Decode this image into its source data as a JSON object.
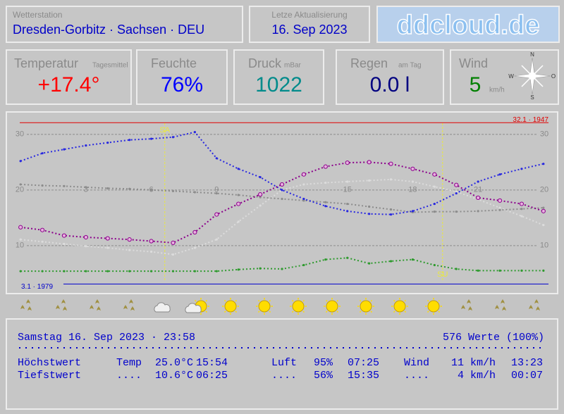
{
  "header": {
    "station_label": "Wetterstation",
    "station": "Dresden-Gorbitz · Sachsen · DEU",
    "update_label": "Letze Aktualisierung",
    "update_date": "16. Sep 2023",
    "logo": "ddcloud.de"
  },
  "tiles": [
    {
      "label": "Temperatur",
      "sublabel": "Tagesmittel",
      "value": "+17.4°",
      "color": "#ff0000"
    },
    {
      "label": "Feuchte",
      "value": "76%",
      "color": "#0000ff"
    },
    {
      "label": "Druck",
      "sublabel": "mBar",
      "value": "1022",
      "color": "#008b8b"
    },
    {
      "label": "Regen",
      "sublabel": "am Tag",
      "value": "0.0 l",
      "color": "#000080"
    },
    {
      "label": "Wind",
      "value": "5",
      "unit": "km/h",
      "color": "#008000"
    }
  ],
  "compass": [
    "N",
    "O",
    "S",
    "W"
  ],
  "chart_data": {
    "type": "line",
    "x": [
      0,
      1,
      2,
      3,
      4,
      5,
      6,
      7,
      8,
      9,
      10,
      11,
      12,
      13,
      14,
      15,
      16,
      17,
      18,
      19,
      20,
      21,
      22,
      23,
      24
    ],
    "xlim": [
      -0.62,
      24.62
    ],
    "xticks": [
      3,
      6,
      9,
      15,
      18,
      21
    ],
    "ylim": [
      1.5,
      33.9
    ],
    "yticks": [
      10,
      20,
      30
    ],
    "grid": true,
    "series": [
      {
        "color": "#dcdcdc",
        "values": [
          11.1,
          10.7,
          10.3,
          9.9,
          9.6,
          9.2,
          8.9,
          8.4,
          9.6,
          11.1,
          14.3,
          17.2,
          20.0,
          21.0,
          21.3,
          21.5,
          21.7,
          21.9,
          21.5,
          20.6,
          19.7,
          18.3,
          16.8,
          15.3,
          13.7
        ]
      },
      {
        "color": "#8c8c8c",
        "values": [
          21.0,
          20.8,
          20.7,
          20.5,
          20.3,
          20.2,
          20.0,
          19.8,
          19.6,
          19.4,
          19.1,
          18.7,
          18.4,
          18.1,
          17.8,
          17.5,
          17.0,
          16.5,
          16.0,
          16.1,
          16.1,
          16.2,
          16.4,
          16.6,
          16.8
        ]
      },
      {
        "color": "#2828e0",
        "values": [
          25.2,
          26.6,
          27.3,
          28.0,
          28.5,
          29.0,
          29.2,
          29.5,
          30.4,
          25.7,
          23.8,
          22.3,
          20.0,
          18.4,
          17.1,
          16.2,
          15.7,
          15.6,
          16.2,
          17.5,
          19.4,
          21.5,
          22.8,
          23.8,
          24.7
        ]
      },
      {
        "color": "#2e9a2e",
        "values": [
          5.4,
          5.4,
          5.4,
          5.4,
          5.4,
          5.4,
          5.4,
          5.4,
          5.4,
          5.4,
          5.7,
          5.9,
          5.8,
          6.5,
          7.5,
          7.8,
          6.8,
          7.2,
          7.5,
          6.5,
          5.8,
          5.5,
          5.5,
          5.5,
          5.5
        ]
      },
      {
        "color": "#8b008b",
        "values": [
          13.3,
          12.8,
          11.8,
          11.5,
          11.3,
          11.1,
          10.8,
          10.5,
          12.4,
          15.6,
          17.5,
          19.2,
          21.0,
          22.8,
          24.2,
          24.9,
          25.0,
          24.7,
          23.8,
          22.8,
          20.9,
          18.6,
          18.1,
          17.5,
          16.2
        ]
      }
    ],
    "reference_lines": [
      {
        "value": 32.1,
        "label": "32.1 · 1947",
        "color": "#e00000"
      },
      {
        "value": 3.1,
        "label": "3.1 · 1979",
        "color": "#0000cc"
      }
    ],
    "vlines": [
      {
        "value": 6.62,
        "label": "SA",
        "color": "#e8e840"
      },
      {
        "value": 19.37,
        "label": "SU",
        "color": "#e8e840"
      }
    ]
  },
  "summary": {
    "date_line": "Samstag 16. Sep 2023 · 23:58",
    "count": "576 Werte (100%)",
    "rows": [
      [
        "Höchstwert",
        "Temp",
        "25.0°C",
        "15:54",
        "Luft",
        "95%",
        "07:25",
        "Wind",
        "11 km/h",
        "13:23"
      ],
      [
        "Tiefstwert",
        "....",
        "10.6°C",
        "06:25",
        "....",
        "56%",
        "15:35",
        "....",
        "4 km/h",
        "00:07"
      ]
    ]
  }
}
